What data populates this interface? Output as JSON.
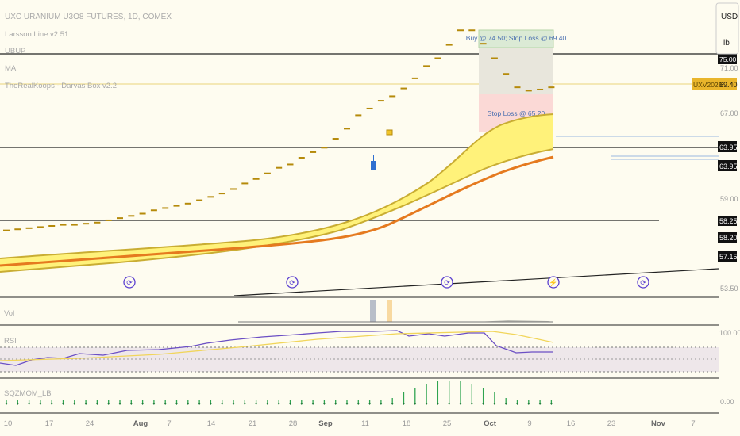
{
  "header": {
    "symbol_title": "UXC URANIUM U3O8 FUTURES, 1D, COMEX",
    "indicators": [
      "Larsson Line v2.51",
      "UBUP",
      "MA",
      "TheRealKoops - Darvas Box v2.2"
    ]
  },
  "top_right": {
    "currency": "USD",
    "unit": "lb"
  },
  "colors": {
    "background": "#fefcf0",
    "band_fill": "#fff27a",
    "band_edge": "#c9ad33",
    "ma_orange": "#e57a1f",
    "bar_color": "#b58a0a",
    "up_candle": "#2f6fd0",
    "target_box": "#dbead5",
    "stop_box": "#fbd9d6",
    "rsi_line": "#6b4fc4",
    "rsi_signal": "#f1d55a",
    "sqz_green": "#2ea44f",
    "last_price_bg": "#e9b52b"
  },
  "annotations": {
    "buy_label": "Buy @ 74.50; Stop Loss @ 69.40",
    "stop_label": "Stop Loss @ 65.20"
  },
  "price_axis": {
    "ticks": [
      "71.00",
      "67.00",
      "59.00",
      "53.50"
    ],
    "line_labels": [
      "63.95",
      "63.95",
      "58.25",
      "58.20",
      "57.15"
    ],
    "top_cut_label": "75.00",
    "last_symbol": "UXV2023",
    "last_price": "69.40"
  },
  "panes": {
    "vol_label": "Vol",
    "rsi_label": "RSI",
    "rsi_top_tick": "100.00",
    "sqz_label": "SQZMOM_LB",
    "sqz_tick": "0.00"
  },
  "time_axis": {
    "labels": [
      "10",
      "17",
      "24",
      "Aug",
      "7",
      "14",
      "21",
      "28",
      "Sep",
      "11",
      "18",
      "25",
      "Oct",
      "9",
      "16",
      "23",
      "Nov",
      "7"
    ]
  },
  "chart_data": {
    "type": "line",
    "title": "UXC URANIUM U3O8 FUTURES, 1D, COMEX",
    "series": [
      {
        "name": "UXV2023",
        "values": [
          56.6,
          56.7,
          56.8,
          56.9,
          57.0,
          57.1,
          57.1,
          57.2,
          57.3,
          57.5,
          57.7,
          57.9,
          58.1,
          58.4,
          58.6,
          58.8,
          59.0,
          59.3,
          59.6,
          59.9,
          60.3,
          60.8,
          61.2,
          61.7,
          62.2,
          62.5,
          63.1,
          63.6,
          64.0,
          64.8,
          65.7,
          66.9,
          67.5,
          68.2,
          68.6,
          69.3,
          70.2,
          71.3,
          72.0,
          73.2,
          74.5,
          74.5,
          73.3,
          72.0,
          70.6,
          69.4,
          69.1,
          69.2,
          69.4
        ]
      }
    ],
    "last_value": 69.4
  }
}
